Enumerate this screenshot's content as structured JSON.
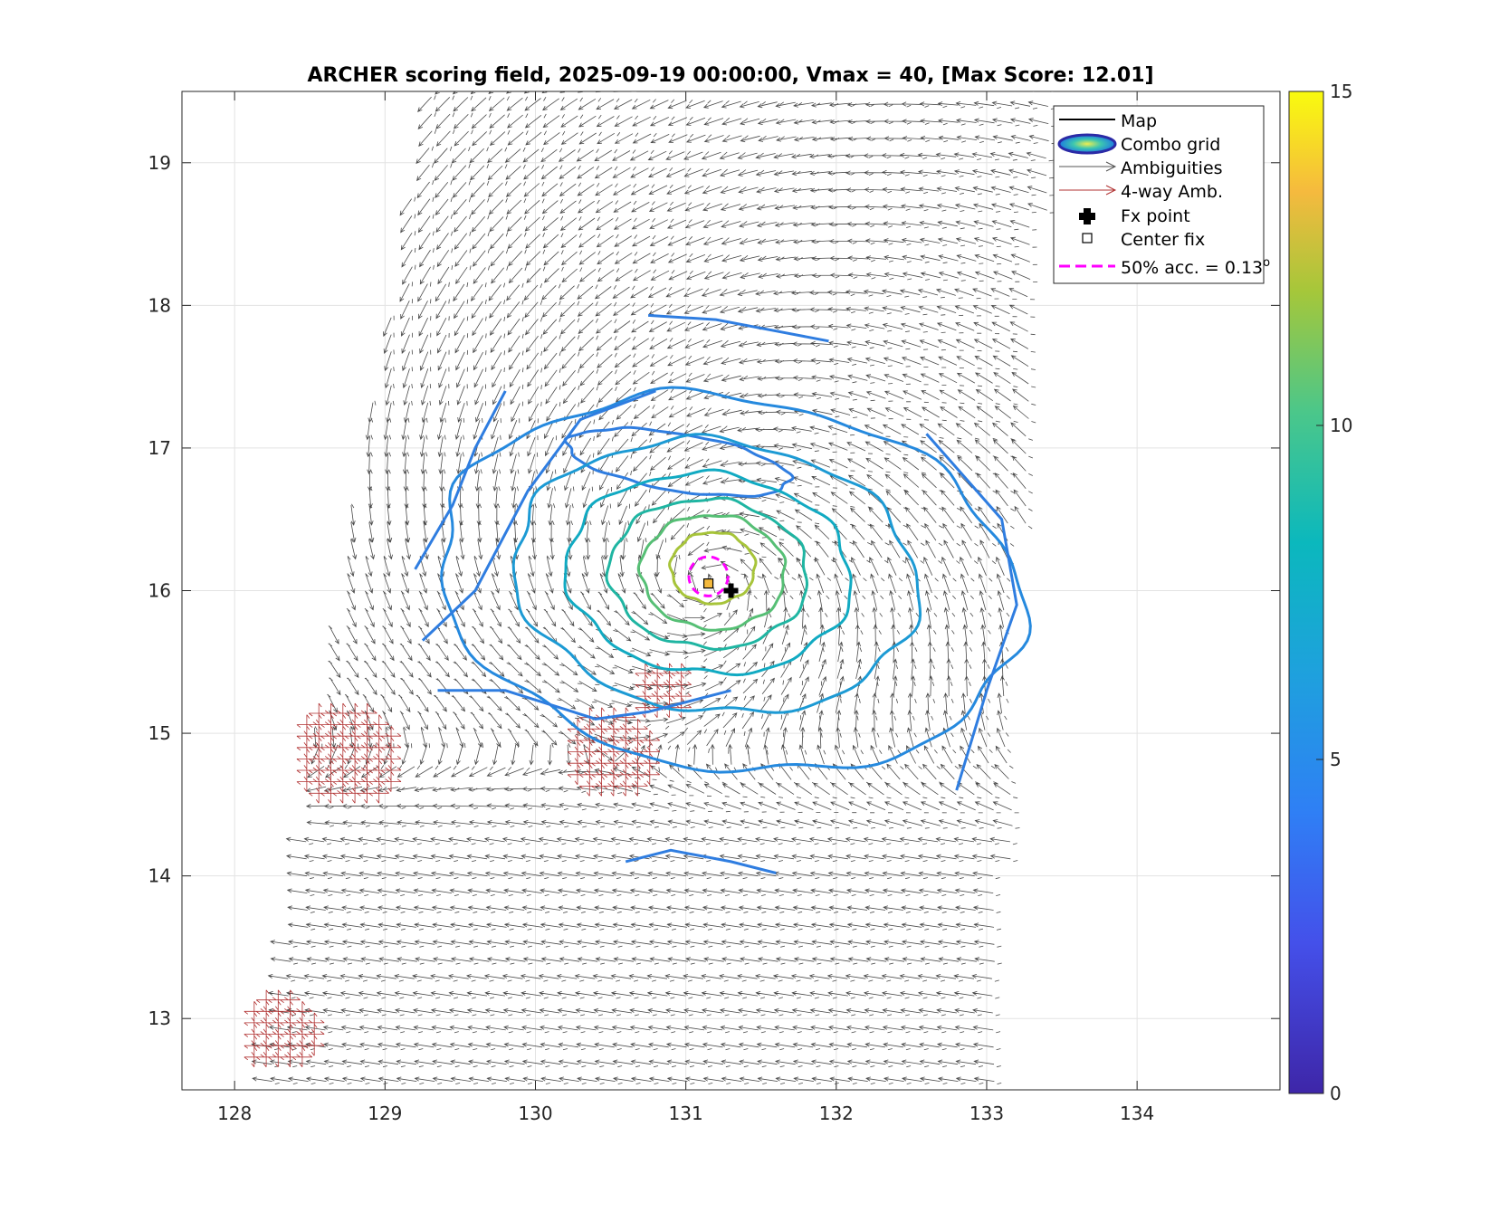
{
  "chart_data": {
    "type": "contour",
    "title": "ARCHER scoring field, 2025-09-19 00:00:00, Vmax = 40, [Max Score: 12.01]",
    "xlabel": "",
    "ylabel": "",
    "xlim": [
      127.65,
      134.95
    ],
    "ylim": [
      12.5,
      19.5
    ],
    "xticks": [
      "128",
      "129",
      "130",
      "131",
      "132",
      "133",
      "134"
    ],
    "yticks": [
      "13",
      "14",
      "15",
      "16",
      "17",
      "18",
      "19"
    ],
    "grid": true,
    "colorbar": {
      "min": 0,
      "max": 15,
      "ticks": [
        "0",
        "5",
        "10",
        "15"
      ]
    },
    "legend": {
      "placement": "top-right",
      "items": [
        {
          "label": "Map",
          "kind": "line",
          "color": "#000000"
        },
        {
          "label": "Combo grid",
          "kind": "ellipse",
          "color": "#2b2aa6"
        },
        {
          "label": "Ambiguities",
          "kind": "arrow",
          "color": "#555555"
        },
        {
          "label": "4-way Amb.",
          "kind": "arrow",
          "color": "#b03030"
        },
        {
          "label": "Fx point",
          "kind": "plus",
          "color": "#000000"
        },
        {
          "label": "Center fix",
          "kind": "square",
          "color": "#000000"
        },
        {
          "label": "50% acc. = 0.13",
          "superscript": "o",
          "kind": "dashed",
          "color": "#ff00ff"
        }
      ]
    },
    "storm_center": {
      "lon": 131.15,
      "lat": 16.05
    },
    "fx_point": {
      "lon": 131.3,
      "lat": 16.0
    },
    "acc_radius_deg": 0.13,
    "contours": [
      {
        "level": 4.5,
        "color": "#2f7de0",
        "cx": 130.95,
        "cy": 16.9,
        "rx": 0.75,
        "ry": 0.2,
        "rot": -10
      },
      {
        "level": 5.0,
        "color": "#2589de",
        "cx": 131.3,
        "cy": 16.05,
        "rx": 1.95,
        "ry": 1.3,
        "rot": -10
      },
      {
        "level": 6.0,
        "color": "#1c9ad4",
        "cx": 131.2,
        "cy": 16.1,
        "rx": 1.35,
        "ry": 0.95,
        "rot": -8
      },
      {
        "level": 7.0,
        "color": "#11aac2",
        "cx": 131.15,
        "cy": 16.12,
        "rx": 0.95,
        "ry": 0.7,
        "rot": -6
      },
      {
        "level": 8.0,
        "color": "#1fb5a2",
        "cx": 131.15,
        "cy": 16.12,
        "rx": 0.66,
        "ry": 0.52,
        "rot": -5
      },
      {
        "level": 9.0,
        "color": "#56bf75",
        "cx": 131.18,
        "cy": 16.13,
        "rx": 0.48,
        "ry": 0.4,
        "rot": -5
      },
      {
        "level": 10.5,
        "color": "#a7c43a",
        "cx": 131.18,
        "cy": 16.16,
        "rx": 0.28,
        "ry": 0.25,
        "rot": 0
      }
    ]
  }
}
